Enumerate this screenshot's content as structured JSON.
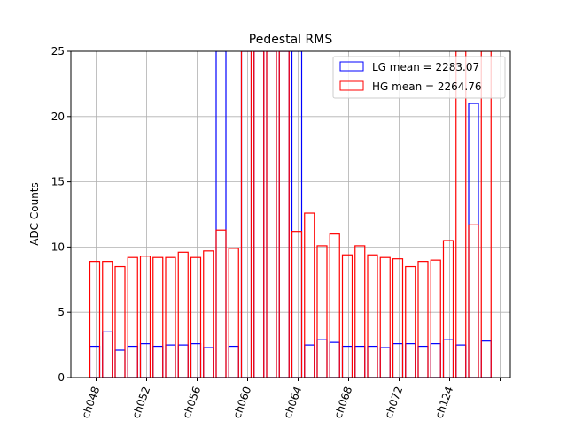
{
  "chart_data": {
    "type": "bar",
    "title": "Pedestal RMS",
    "xlabel": "",
    "ylabel": "ADC Counts",
    "ylim": [
      0,
      25
    ],
    "yticks": [
      0,
      5,
      10,
      15,
      20,
      25
    ],
    "grid": true,
    "legend_position": "top-right",
    "xtick_labels": [
      "ch048",
      "ch052",
      "ch056",
      "ch060",
      "ch064",
      "ch068",
      "ch072",
      "ch124"
    ],
    "xtick_rotation": 70,
    "bar_count": 32,
    "series": [
      {
        "name": "LG mean = 2283.07",
        "color": "#0000ff",
        "values": [
          2.4,
          3.5,
          2.1,
          2.4,
          2.6,
          2.4,
          2.5,
          2.5,
          2.6,
          2.3,
          25,
          2.4,
          25,
          25,
          25,
          25,
          25,
          2.5,
          2.9,
          2.7,
          2.4,
          2.4,
          2.4,
          2.3,
          2.6,
          2.6,
          2.4,
          2.6,
          2.9,
          2.5,
          21.0,
          2.8
        ]
      },
      {
        "name": "HG mean = 2264.76",
        "color": "#ff0000",
        "values": [
          8.9,
          8.9,
          8.5,
          9.2,
          9.3,
          9.2,
          9.2,
          9.6,
          9.2,
          9.7,
          11.3,
          9.9,
          25,
          25,
          25,
          25,
          11.2,
          12.6,
          10.1,
          11.0,
          9.4,
          10.1,
          9.4,
          9.2,
          9.1,
          8.5,
          8.9,
          9.0,
          10.5,
          25,
          11.7,
          25
        ]
      }
    ]
  }
}
